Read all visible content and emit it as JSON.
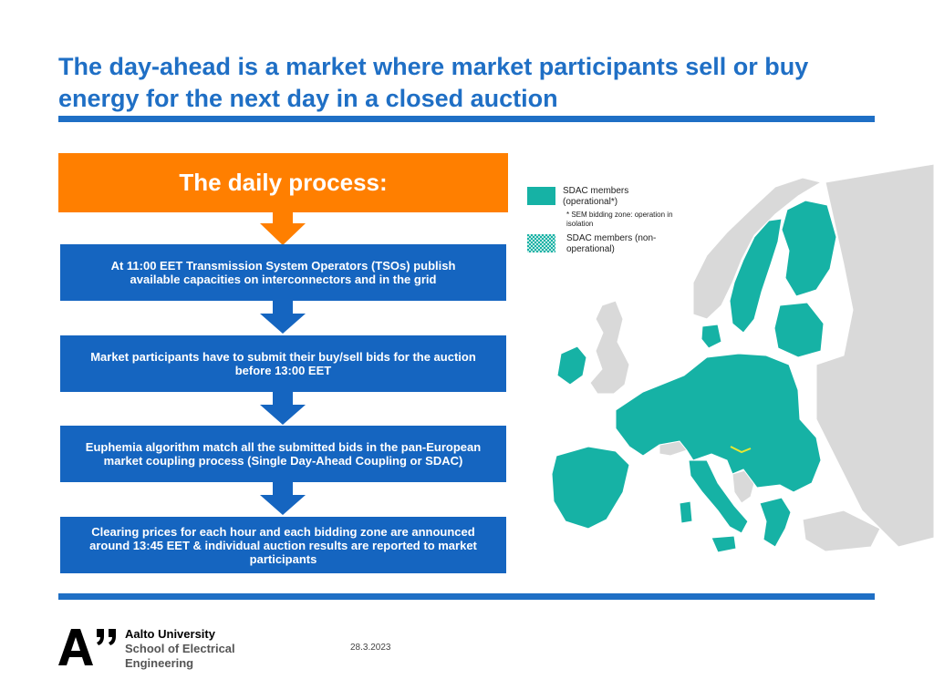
{
  "title": {
    "line1": "The day-ahead is a market where market participants sell or buy",
    "line2": "energy for the next day in a closed auction"
  },
  "process": {
    "heading": "The daily process:",
    "steps": [
      {
        "line1": "At 11:00 EET Transmission System Operators (TSOs) publish",
        "line2": "available capacities on interconnectors and in the grid",
        "line3": ""
      },
      {
        "line1": "Market participants have to submit their buy/sell bids for the auction",
        "line2": "before 13:00 EET",
        "line3": ""
      },
      {
        "line1": "Euphemia algorithm match all the submitted bids in the pan-European",
        "line2": "market coupling process (Single Day-Ahead Coupling or SDAC)",
        "line3": ""
      },
      {
        "line1": "Clearing prices for each hour and each bidding zone are announced",
        "line2": "around 13:45 EET & individual auction results are reported to market",
        "line3": "participants"
      }
    ]
  },
  "legend": {
    "operational_line1": "SDAC members",
    "operational_line2": "(operational*)",
    "note_line1": "* SEM bidding zone: operation in",
    "note_line2": "isolation",
    "nonop_line1": "SDAC members (non-",
    "nonop_line2": "operational)"
  },
  "colors": {
    "title_blue": "#1f6fc5",
    "orange": "#ff7f00",
    "step_blue": "#1565c0",
    "member_teal": "#16b2a5",
    "nonmember_grey": "#d9d9d9"
  },
  "footer": {
    "university_line1": "Aalto University",
    "university_line2": "School of Electrical",
    "university_line3": "Engineering",
    "date": "28.3.2023"
  }
}
